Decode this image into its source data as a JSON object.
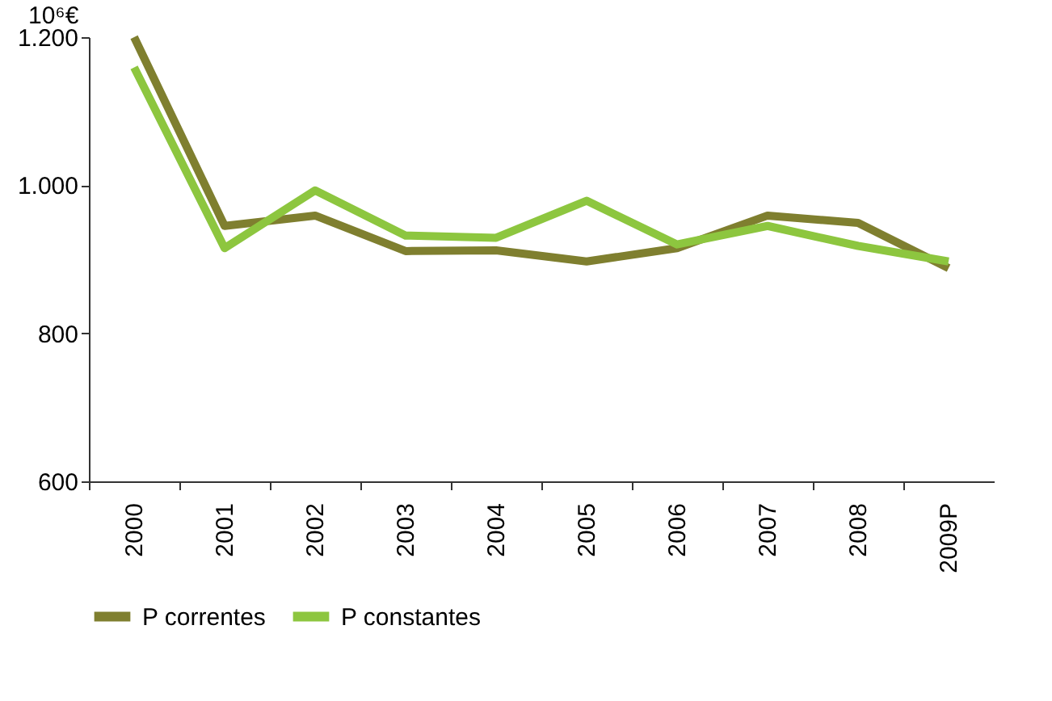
{
  "chart_data": {
    "type": "line",
    "ylabel": "10⁶€",
    "categories": [
      "2000",
      "2001",
      "2002",
      "2003",
      "2004",
      "2005",
      "2006",
      "2007",
      "2008",
      "2009P"
    ],
    "series": [
      {
        "name": "P correntes",
        "color": "#7f7f2f",
        "values": [
          1200,
          945,
          959,
          911,
          912,
          897,
          915,
          959,
          949,
          888
        ]
      },
      {
        "name": "P constantes",
        "color": "#8dc63f",
        "values": [
          1159,
          915,
          993,
          932,
          929,
          979,
          920,
          945,
          918,
          897
        ]
      }
    ],
    "ylim": [
      600,
      1200
    ],
    "yticks": [
      {
        "value": 600,
        "label": "600"
      },
      {
        "value": 800,
        "label": "800"
      },
      {
        "value": 1000,
        "label": "1.000"
      },
      {
        "value": 1200,
        "label": "1.200"
      }
    ],
    "grid": false,
    "legend": "bottom",
    "marker": "none",
    "line_style": "solid"
  }
}
